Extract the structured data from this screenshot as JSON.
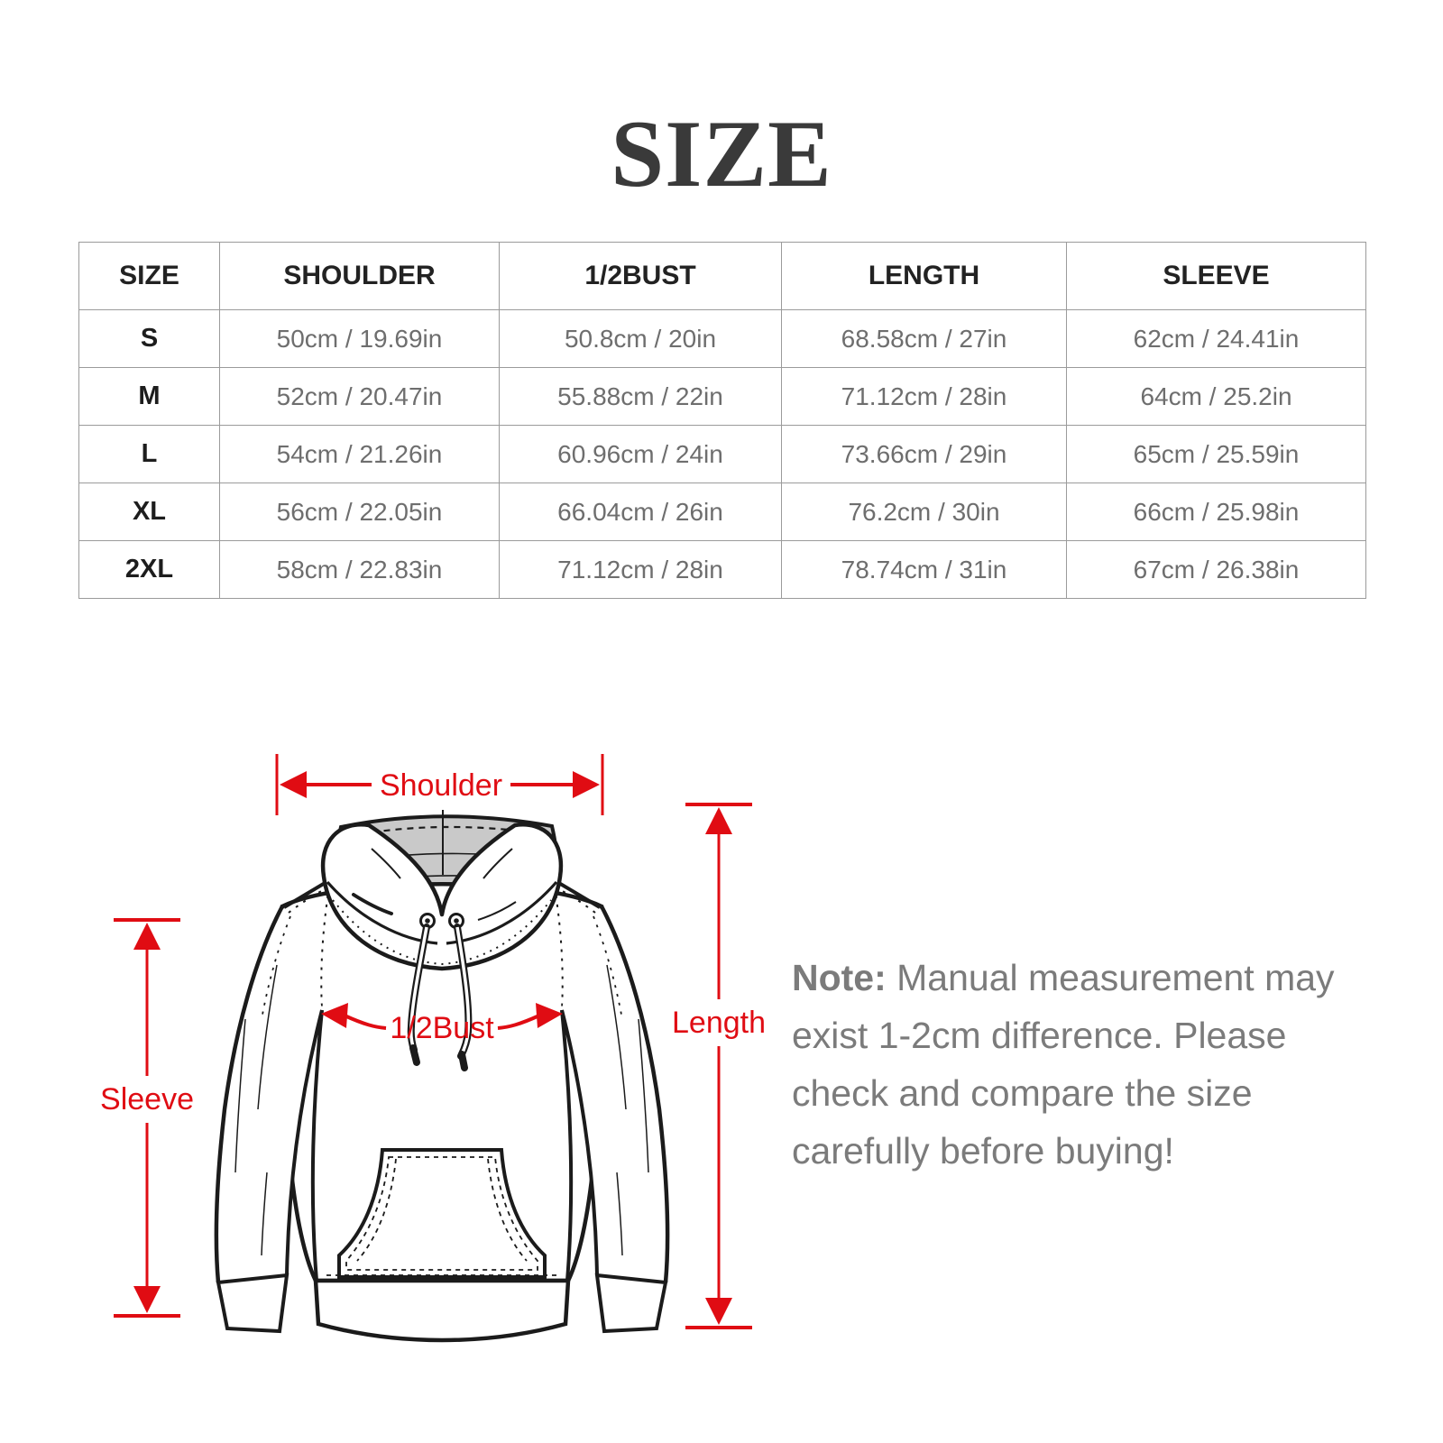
{
  "title": "SIZE",
  "table": {
    "columns": [
      "SIZE",
      "SHOULDER",
      "1/2BUST",
      "LENGTH",
      "SLEEVE"
    ],
    "rows": [
      [
        "S",
        "50cm / 19.69in",
        "50.8cm / 20in",
        "68.58cm / 27in",
        "62cm / 24.41in"
      ],
      [
        "M",
        "52cm / 20.47in",
        "55.88cm / 22in",
        "71.12cm / 28in",
        "64cm / 25.2in"
      ],
      [
        "L",
        "54cm / 21.26in",
        "60.96cm / 24in",
        "73.66cm / 29in",
        "65cm / 25.59in"
      ],
      [
        "XL",
        "56cm / 22.05in",
        "66.04cm / 26in",
        "76.2cm / 30in",
        "66cm / 25.98in"
      ],
      [
        "2XL",
        "58cm / 22.83in",
        "71.12cm / 28in",
        "78.74cm / 31in",
        "67cm / 26.38in"
      ]
    ]
  },
  "diagram": {
    "labels": {
      "shoulder": "Shoulder",
      "sleeve": "Sleeve",
      "half_bust": "1/2Bust",
      "length": "Length"
    },
    "colors": {
      "arrow_red": "#e00c13",
      "hood_interior_gray": "#c9c9c9",
      "line_ink": "#1b1b1b"
    }
  },
  "note": {
    "label": "Note:",
    "text": " Manual measurement may exist 1-2cm difference. Please check and compare the size carefully before buying!",
    "text_gray": "#7b7b7b"
  }
}
